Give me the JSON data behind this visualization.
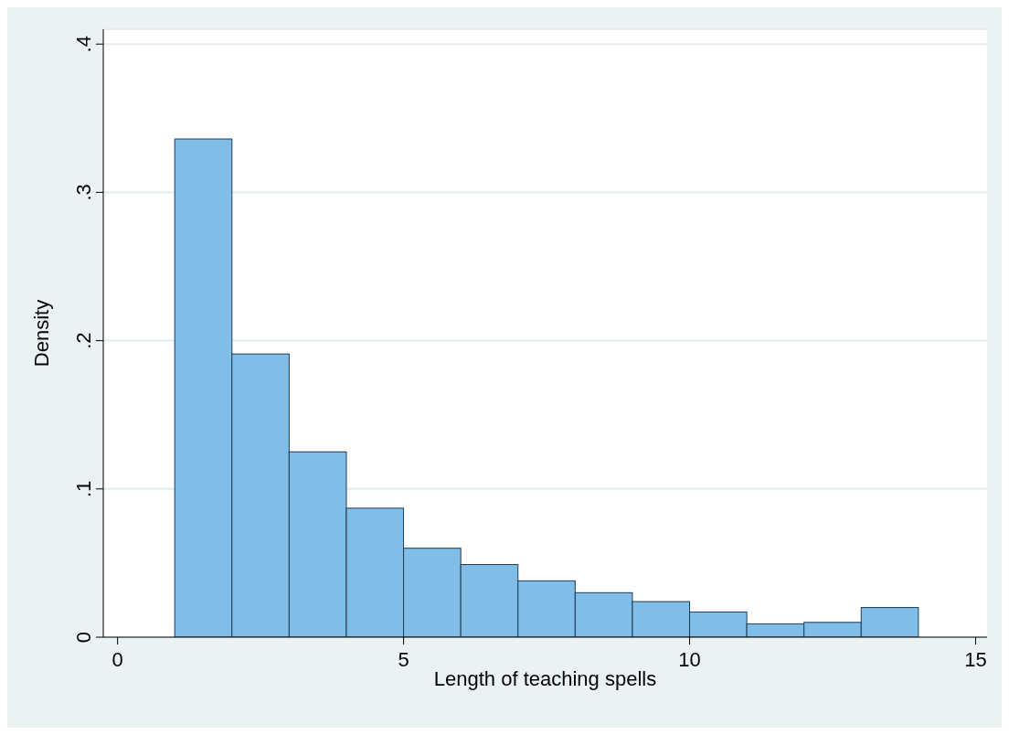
{
  "chart_data": {
    "type": "histogram",
    "xlabel": "Length of teaching spells",
    "ylabel": "Density",
    "bins": [
      1,
      2,
      3,
      4,
      5,
      6,
      7,
      8,
      9,
      10,
      11,
      12,
      13,
      14
    ],
    "values": [
      0.336,
      0.191,
      0.125,
      0.087,
      0.06,
      0.049,
      0.038,
      0.03,
      0.024,
      0.017,
      0.009,
      0.01,
      0.02
    ],
    "color": "#80bee8",
    "xlim": [
      -0.25,
      15.2
    ],
    "xticks": [
      0,
      5,
      10,
      15
    ],
    "ylim": [
      0,
      0.41
    ],
    "yticks": [
      0,
      {
        "value": 0.1,
        "label": ".1"
      },
      {
        "value": 0.2,
        "label": ".2"
      },
      {
        "value": 0.3,
        "label": ".3"
      },
      {
        "value": 0.4,
        "label": ".4"
      }
    ],
    "grid": "y"
  }
}
